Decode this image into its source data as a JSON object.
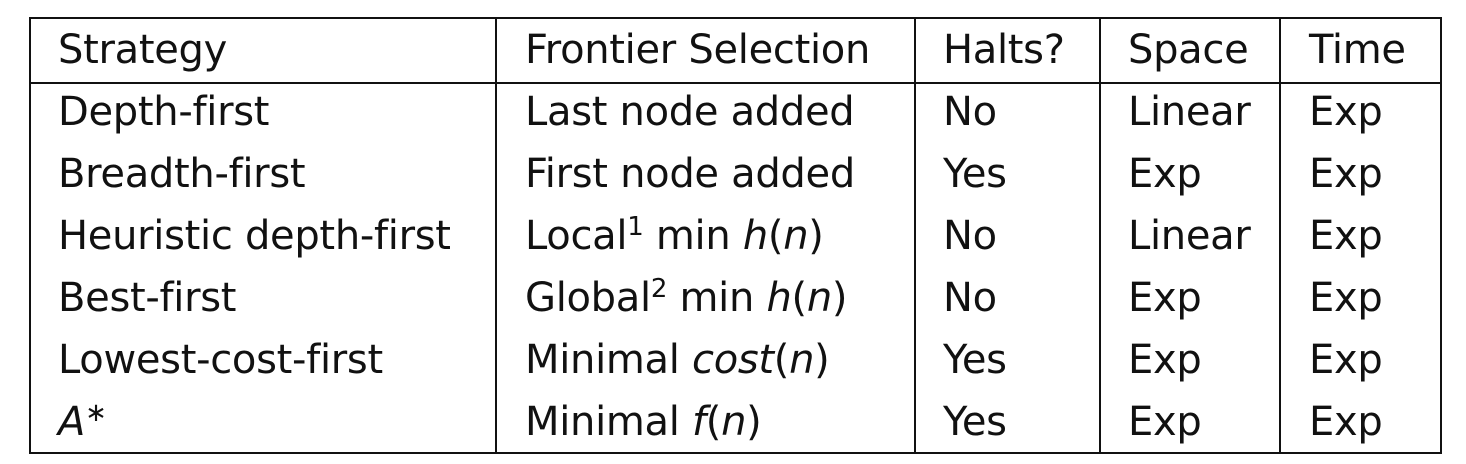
{
  "table": {
    "headers": [
      "Strategy",
      "Frontier Selection",
      "Halts?",
      "Space",
      "Time"
    ],
    "rows": [
      {
        "strategy": "Depth-first",
        "frontier": {
          "text": "Last node added"
        },
        "halts": "No",
        "space": "Linear",
        "time": "Exp"
      },
      {
        "strategy": "Breadth-first",
        "frontier": {
          "text": "First node added"
        },
        "halts": "Yes",
        "space": "Exp",
        "time": "Exp"
      },
      {
        "strategy": "Heuristic depth-first",
        "frontier": {
          "text": "Local",
          "sup": "1",
          "rest": " min ",
          "fn": "h",
          "open": "(",
          "arg": "n",
          "close": ")"
        },
        "halts": "No",
        "space": "Linear",
        "time": "Exp"
      },
      {
        "strategy": "Best-first",
        "frontier": {
          "text": "Global",
          "sup": "2",
          "rest": " min ",
          "fn": "h",
          "open": "(",
          "arg": "n",
          "close": ")"
        },
        "halts": "No",
        "space": "Exp",
        "time": "Exp"
      },
      {
        "strategy": "Lowest-cost-first",
        "frontier": {
          "text": "Minimal ",
          "fn": "cost",
          "open": "(",
          "arg": "n",
          "close": ")"
        },
        "halts": "Yes",
        "space": "Exp",
        "time": "Exp"
      },
      {
        "strategy": "A",
        "strategy_sup": "∗",
        "frontier": {
          "text": "Minimal ",
          "fn": "f",
          "open": "(",
          "arg": "n",
          "close": ")"
        },
        "halts": "Yes",
        "space": "Exp",
        "time": "Exp"
      }
    ]
  }
}
